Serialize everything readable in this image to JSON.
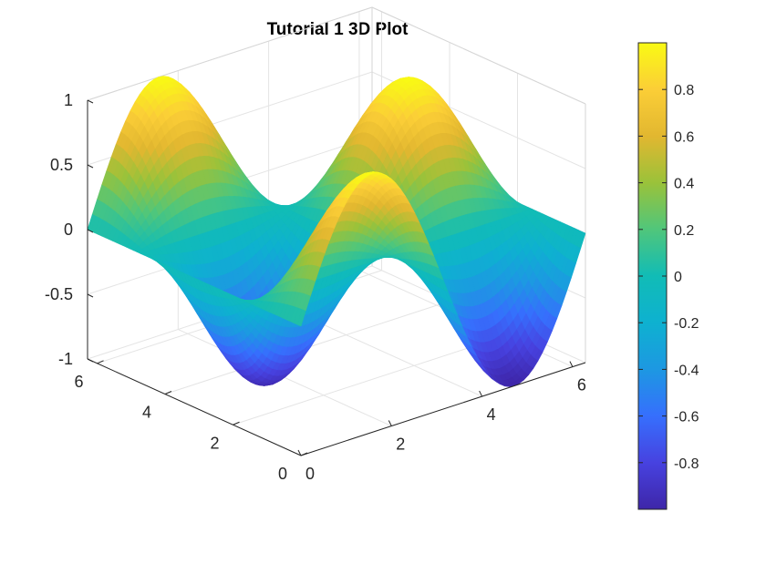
{
  "chart_data": {
    "type": "surface",
    "title": "Tutorial 1 3D Plot",
    "function": "z = sin(x) * cos(y)",
    "x": [
      0,
      6.2832
    ],
    "y": [
      0,
      6.2832
    ],
    "xlim": [
      0,
      6.2832
    ],
    "ylim": [
      0,
      6.2832
    ],
    "zlim": [
      -1,
      1
    ],
    "grid": true,
    "colormap": "parula",
    "x_ticks": [
      "0",
      "2",
      "4",
      "6"
    ],
    "y_ticks": [
      "0",
      "2",
      "4",
      "6"
    ],
    "z_ticks": [
      "-1",
      "-0.5",
      "0",
      "0.5",
      "1"
    ],
    "colorbar": {
      "range": [
        -1,
        1
      ],
      "ticks": [
        "-0.8",
        "-0.6",
        "-0.4",
        "-0.2",
        "0",
        "0.2",
        "0.4",
        "0.6",
        "0.8"
      ],
      "location": "right"
    }
  }
}
